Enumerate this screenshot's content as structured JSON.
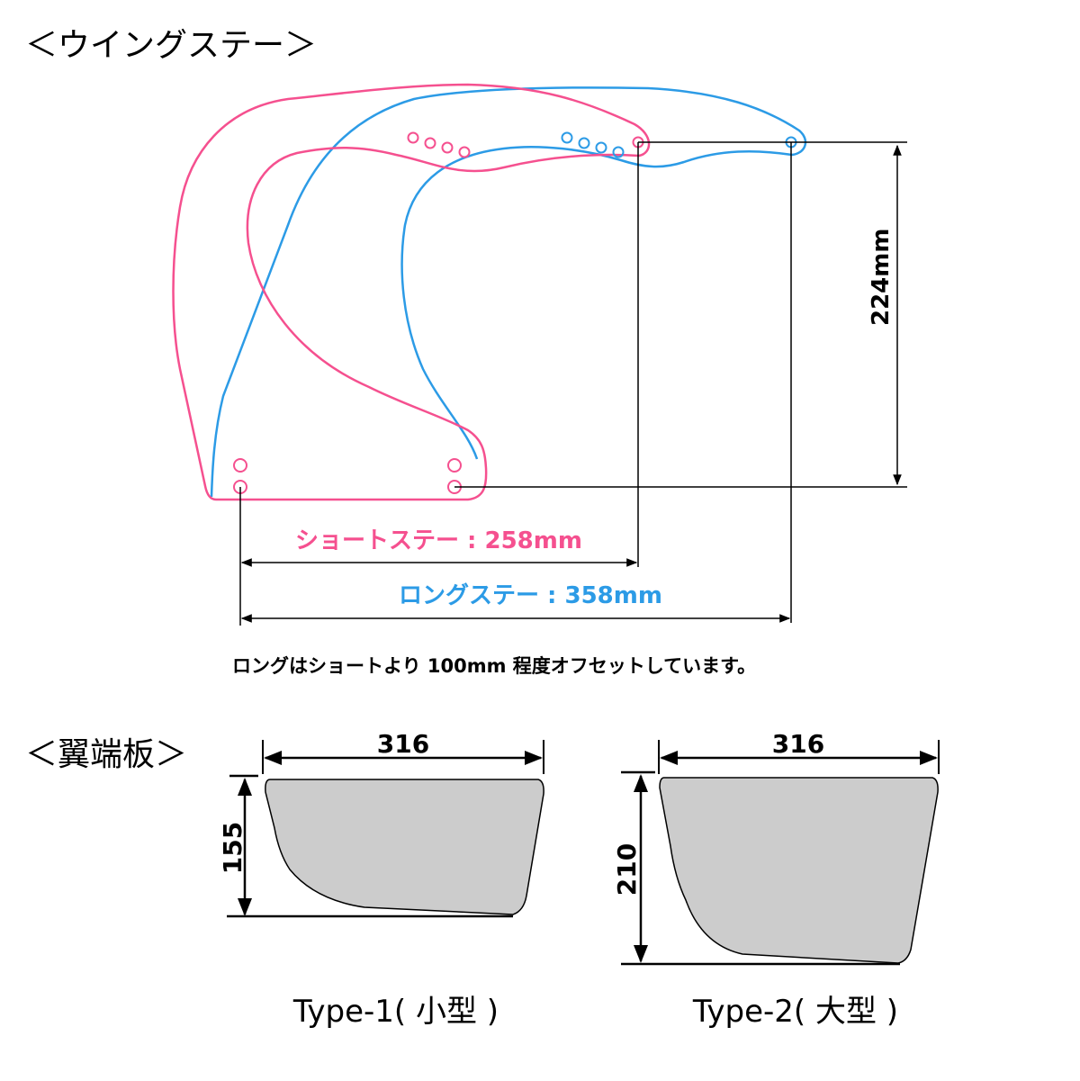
{
  "colors": {
    "short_stay": "#f5508f",
    "long_stay": "#2c9be6",
    "plate_fill": "#cccccc",
    "line": "#000000"
  },
  "wing_stay": {
    "title": "＜ウイングステー＞",
    "height_label": "224mm",
    "short_label": "ショートステー : 258mm",
    "long_label": "ロングステー : 358mm",
    "note": "ロングはショートより 100mm 程度オフセットしています。"
  },
  "end_plate": {
    "title": "＜翼端板＞",
    "types": [
      {
        "name": "Type-1( 小型 )",
        "width": "316",
        "height": "155"
      },
      {
        "name": "Type-2( 大型 )",
        "width": "316",
        "height": "210"
      }
    ]
  }
}
